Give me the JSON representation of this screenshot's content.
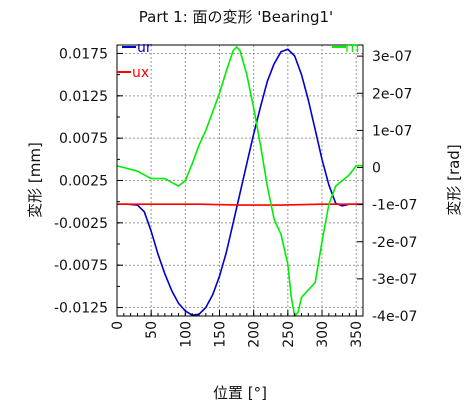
{
  "chart_data": {
    "type": "line",
    "title": "Part 1: 面の変形 'Bearing1'",
    "xlabel": "位置 [°]",
    "ylabel_left": "変形 [mm]",
    "ylabel_right": "変形 [rad]",
    "xlim": [
      0,
      360
    ],
    "ylim_left": [
      -0.0135,
      0.0185
    ],
    "ylim_right": [
      -4e-07,
      3.3e-07
    ],
    "grid": true,
    "x_ticks": [
      "0",
      "50",
      "100",
      "150",
      "200",
      "250",
      "300",
      "350"
    ],
    "y_left_ticks": [
      "0.0175",
      "0.0125",
      "0.0075",
      "0.0025",
      "-0.0025",
      "-0.0075",
      "-0.0125"
    ],
    "y_right_ticks": [
      "3e-07",
      "2e-07",
      "1e-07",
      "0",
      "-1e-07",
      "-2e-07",
      "-3e-07",
      "-4e-07"
    ],
    "series": [
      {
        "name": "ur",
        "axis": "left",
        "color": "#0000cc",
        "x": [
          0,
          15,
          30,
          40,
          50,
          60,
          70,
          80,
          90,
          100,
          110,
          120,
          130,
          140,
          150,
          160,
          170,
          180,
          190,
          200,
          210,
          220,
          230,
          240,
          250,
          260,
          270,
          280,
          290,
          300,
          310,
          320,
          330,
          340,
          350,
          360
        ],
        "y": [
          -0.0003,
          -0.0003,
          -0.0004,
          -0.0012,
          -0.0035,
          -0.0062,
          -0.0085,
          -0.0105,
          -0.012,
          -0.0129,
          -0.0134,
          -0.0133,
          -0.0125,
          -0.011,
          -0.0088,
          -0.006,
          -0.0025,
          0.001,
          0.0045,
          0.008,
          0.0112,
          0.0142,
          0.0163,
          0.0177,
          0.018,
          0.0172,
          0.015,
          0.012,
          0.0085,
          0.005,
          0.002,
          -0.0002,
          -0.0005,
          -0.0003,
          -0.0003,
          -0.0003
        ]
      },
      {
        "name": "ux",
        "axis": "left",
        "color": "#ff0000",
        "x": [
          0,
          60,
          120,
          180,
          240,
          300,
          360
        ],
        "y": [
          -0.0003,
          -0.0003,
          -0.0003,
          -0.0004,
          -0.0004,
          -0.0003,
          -0.0003
        ]
      },
      {
        "name": "rn",
        "axis": "right",
        "color": "#00ee00",
        "x": [
          0,
          10,
          20,
          30,
          40,
          50,
          60,
          70,
          80,
          90,
          100,
          110,
          120,
          130,
          140,
          150,
          160,
          170,
          175,
          180,
          190,
          200,
          210,
          220,
          230,
          240,
          250,
          255,
          260,
          265,
          270,
          280,
          290,
          300,
          310,
          320,
          330,
          340,
          350,
          360
        ],
        "y": [
          4e-09,
          0,
          -5e-09,
          -1e-08,
          -2e-08,
          -3e-08,
          -3e-08,
          -3e-08,
          -4e-08,
          -5e-08,
          -3.5e-08,
          1e-08,
          6e-08,
          1e-07,
          1.5e-07,
          2e-07,
          2.6e-07,
          3.15e-07,
          3.25e-07,
          3.15e-07,
          2.5e-07,
          1.6e-07,
          6e-08,
          -5e-08,
          -1.4e-07,
          -1.8e-07,
          -2.6e-07,
          -3.5e-07,
          -4e-07,
          -3.9e-07,
          -3.5e-07,
          -3.3e-07,
          -3.1e-07,
          -2e-07,
          -1e-07,
          -5e-08,
          -3.5e-08,
          -2e-08,
          5e-09,
          5e-09
        ]
      }
    ]
  }
}
